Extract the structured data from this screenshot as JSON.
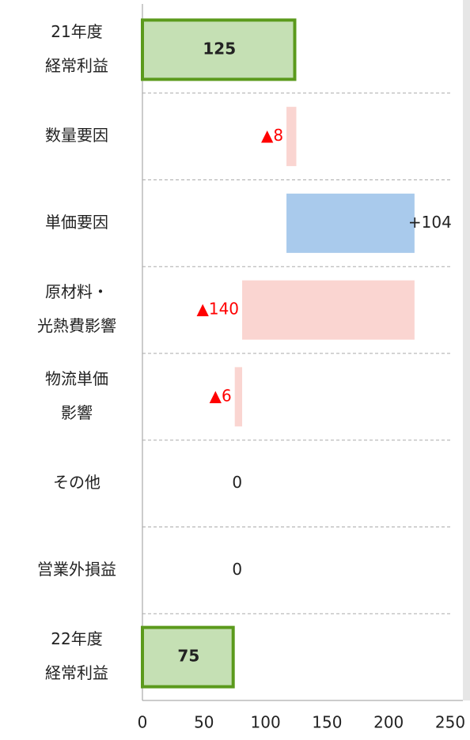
{
  "chart_data": {
    "type": "waterfall",
    "categories": [
      [
        "21年度",
        "経常利益"
      ],
      [
        "数量要因"
      ],
      [
        "単価要因"
      ],
      [
        "原材料・",
        "光熱費影響"
      ],
      [
        "物流単価",
        "影響"
      ],
      [
        "その他"
      ],
      [
        "営業外損益"
      ],
      [
        "22年度",
        "経常利益"
      ]
    ],
    "values": [
      125,
      -8,
      104,
      -140,
      -6,
      0,
      0,
      75
    ],
    "value_labels": [
      "125",
      "▲8",
      "+104",
      "▲140",
      "▲6",
      "0",
      "0",
      "75"
    ],
    "measure": [
      "total",
      "relative",
      "relative",
      "relative",
      "relative",
      "relative",
      "relative",
      "total"
    ],
    "colors": {
      "total": "#c5e0b4",
      "total_border": "#5b9a1c",
      "increase": "#a9caec",
      "decrease": "#fad5d1",
      "decrease_label": "#ff0000"
    },
    "xlim": [
      0,
      250
    ],
    "xticks": [
      0,
      50,
      100,
      150,
      200,
      250
    ],
    "grid": true
  }
}
